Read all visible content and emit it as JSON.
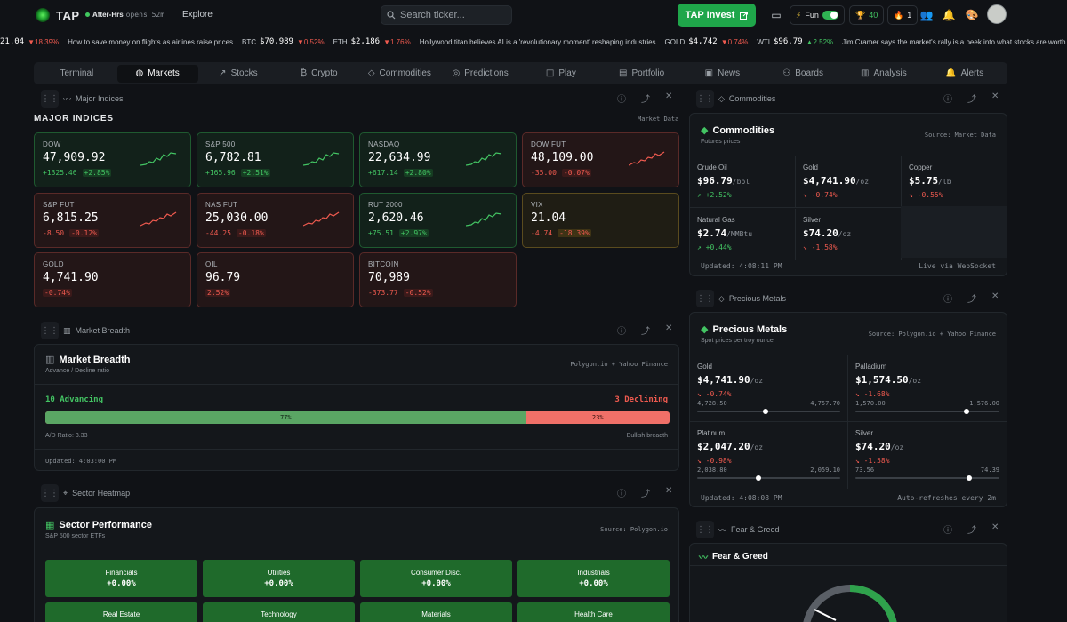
{
  "header": {
    "app_name": "TAP",
    "status": "After-Hrs",
    "status_sub": "opens 52m",
    "explore": "Explore",
    "search_placeholder": "Search ticker...",
    "invest_label": "TAP Invest",
    "fun_label": "Fun",
    "trophy_count": "40",
    "streak_count": "1"
  },
  "ticker": [
    {
      "label": "",
      "value": "21.04",
      "change": "▼18.39%",
      "dir": "down"
    },
    {
      "label": "How to save money on flights as airlines raise prices",
      "value": "",
      "change": "",
      "dir": "news"
    },
    {
      "label": "BTC",
      "value": "$70,989",
      "change": "▼0.52%",
      "dir": "down"
    },
    {
      "label": "ETH",
      "value": "$2,186",
      "change": "▼1.76%",
      "dir": "down"
    },
    {
      "label": "Hollywood titan believes AI is a 'revolutionary moment' reshaping industries",
      "value": "",
      "change": "",
      "dir": "news"
    },
    {
      "label": "GOLD",
      "value": "$4,742",
      "change": "▼0.74%",
      "dir": "down"
    },
    {
      "label": "WTI",
      "value": "$96.79",
      "change": "▲2.52%",
      "dir": "up"
    },
    {
      "label": "Jim Cramer says the market's rally is a peek into what stocks are worth buying",
      "value": "",
      "change": "",
      "dir": "news"
    }
  ],
  "nav": [
    "Terminal",
    "Markets",
    "Stocks",
    "Crypto",
    "Commodities",
    "Predictions",
    "Play",
    "Portfolio",
    "News",
    "Boards",
    "Analysis",
    "Alerts"
  ],
  "indices": {
    "widget_title": "Major Indices",
    "heading": "MAJOR INDICES",
    "source": "Market Data",
    "tiles": [
      {
        "name": "DOW",
        "price": "47,909.92",
        "change": "+1325.46",
        "pct": "+2.85%",
        "tone": "g"
      },
      {
        "name": "S&P 500",
        "price": "6,782.81",
        "change": "+165.96",
        "pct": "+2.51%",
        "tone": "g"
      },
      {
        "name": "NASDAQ",
        "price": "22,634.99",
        "change": "+617.14",
        "pct": "+2.80%",
        "tone": "g"
      },
      {
        "name": "DOW FUT",
        "price": "48,109.00",
        "change": "-35.00",
        "pct": "-0.07%",
        "tone": "r"
      },
      {
        "name": "S&P FUT",
        "price": "6,815.25",
        "change": "-8.50",
        "pct": "-0.12%",
        "tone": "r"
      },
      {
        "name": "NAS FUT",
        "price": "25,030.00",
        "change": "-44.25",
        "pct": "-0.18%",
        "tone": "r"
      },
      {
        "name": "RUT 2000",
        "price": "2,620.46",
        "change": "+75.51",
        "pct": "+2.97%",
        "tone": "g"
      },
      {
        "name": "VIX",
        "price": "21.04",
        "change": "-4.74",
        "pct": "-18.39%",
        "tone": "y"
      },
      {
        "name": "GOLD",
        "price": "4,741.90",
        "change": "",
        "pct": "-0.74%",
        "tone": "r"
      },
      {
        "name": "OIL",
        "price": "96.79",
        "change": "",
        "pct": "2.52%",
        "tone": "r"
      },
      {
        "name": "BITCOIN",
        "price": "70,989",
        "change": "-373.77",
        "pct": "-0.52%",
        "tone": "r"
      }
    ]
  },
  "breadth": {
    "widget_title": "Market Breadth",
    "title": "Market Breadth",
    "subtitle": "Advance / Decline ratio",
    "source": "Polygon.io + Yahoo Finance",
    "advancing": "10 Advancing",
    "declining": "3 Declining",
    "adv_pct": 77,
    "adv_label": "77%",
    "dec_label": "23%",
    "ratio": "A/D Ratio: 3.33",
    "sentiment": "Bullish breadth",
    "updated": "Updated: 4:03:00 PM"
  },
  "heatmap": {
    "widget_title": "Sector Heatmap",
    "title": "Sector Performance",
    "subtitle": "S&P 500 sector ETFs",
    "source": "Source: Polygon.io",
    "sectors": [
      {
        "name": "Financials",
        "value": "+0.00%"
      },
      {
        "name": "Utilities",
        "value": "+0.00%"
      },
      {
        "name": "Consumer Disc.",
        "value": "+0.00%"
      },
      {
        "name": "Industrials",
        "value": "+0.00%"
      },
      {
        "name": "Real Estate"
      },
      {
        "name": "Technology"
      },
      {
        "name": "Materials"
      },
      {
        "name": "Health Care"
      }
    ]
  },
  "commodities": {
    "widget_title": "Commodities",
    "title": "Commodities",
    "subtitle": "Futures prices",
    "source": "Source: Market Data",
    "items": [
      {
        "name": "Crude Oil",
        "price": "$96.79",
        "unit": "/bbl",
        "change": "+2.52%",
        "dir": "up"
      },
      {
        "name": "Gold",
        "price": "$4,741.90",
        "unit": "/oz",
        "change": "-0.74%",
        "dir": "down"
      },
      {
        "name": "Copper",
        "price": "$5.75",
        "unit": "/lb",
        "change": "-0.55%",
        "dir": "down"
      },
      {
        "name": "Natural Gas",
        "price": "$2.74",
        "unit": "/MMBtu",
        "change": "+0.44%",
        "dir": "up"
      },
      {
        "name": "Silver",
        "price": "$74.20",
        "unit": "/oz",
        "change": "-1.58%",
        "dir": "down"
      }
    ],
    "updated": "Updated: 4:08:11 PM",
    "live": "Live via WebSocket"
  },
  "metals": {
    "widget_title": "Precious Metals",
    "title": "Precious Metals",
    "subtitle": "Spot prices per troy ounce",
    "source": "Source: Polygon.io + Yahoo Finance",
    "items": [
      {
        "name": "Gold",
        "price": "$4,741.90",
        "unit": "/oz",
        "change": "-0.74%",
        "low": "4,728.50",
        "high": "4,757.70",
        "pos": 0.46
      },
      {
        "name": "Palladium",
        "price": "$1,574.50",
        "unit": "/oz",
        "change": "-1.68%",
        "low": "1,570.00",
        "high": "1,576.00",
        "pos": 0.75
      },
      {
        "name": "Platinum",
        "price": "$2,047.20",
        "unit": "/oz",
        "change": "-0.98%",
        "low": "2,038.80",
        "high": "2,059.10",
        "pos": 0.41
      },
      {
        "name": "Silver",
        "price": "$74.20",
        "unit": "/oz",
        "change": "-1.58%",
        "low": "73.56",
        "high": "74.39",
        "pos": 0.77
      }
    ],
    "updated": "Updated: 4:08:08 PM",
    "refresh": "Auto-refreshes every 2m"
  },
  "feargreed": {
    "widget_title": "Fear & Greed",
    "title": "Fear & Greed"
  },
  "colors": {
    "up": "#43c463",
    "down": "#ef5a4f",
    "accent": "#1fa64a"
  }
}
